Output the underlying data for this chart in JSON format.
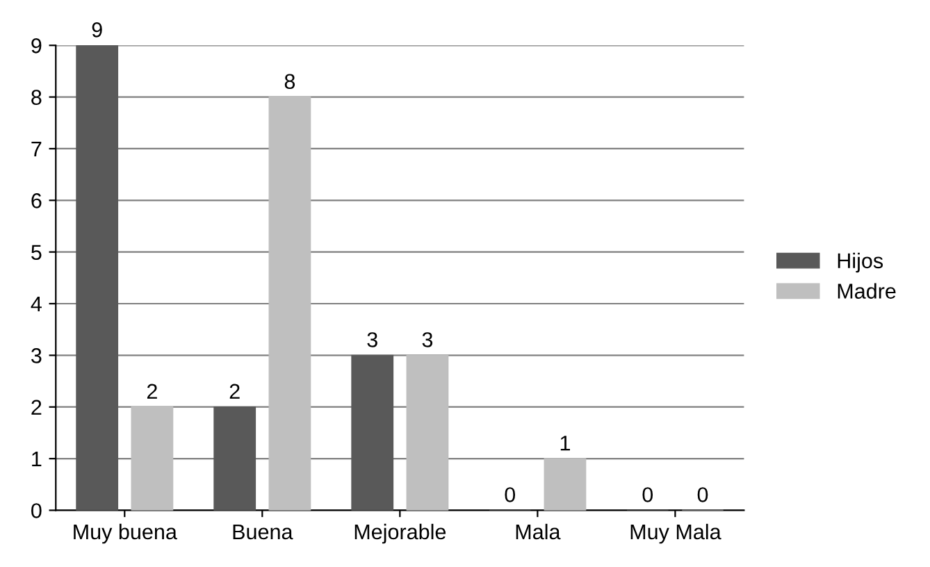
{
  "chart_data": {
    "type": "bar",
    "categories": [
      "Muy buena",
      "Buena",
      "Mejorable",
      "Mala",
      "Muy Mala"
    ],
    "series": [
      {
        "name": "Hijos",
        "color": "#595959",
        "values": [
          9,
          2,
          3,
          0,
          0
        ]
      },
      {
        "name": "Madre",
        "color": "#bfbfbf",
        "values": [
          2,
          8,
          3,
          1,
          0
        ]
      }
    ],
    "ylim": [
      0,
      9
    ],
    "yticks": [
      0,
      1,
      2,
      3,
      4,
      5,
      6,
      7,
      8,
      9
    ],
    "grid": "y",
    "legend": "right",
    "data_labels": true
  }
}
